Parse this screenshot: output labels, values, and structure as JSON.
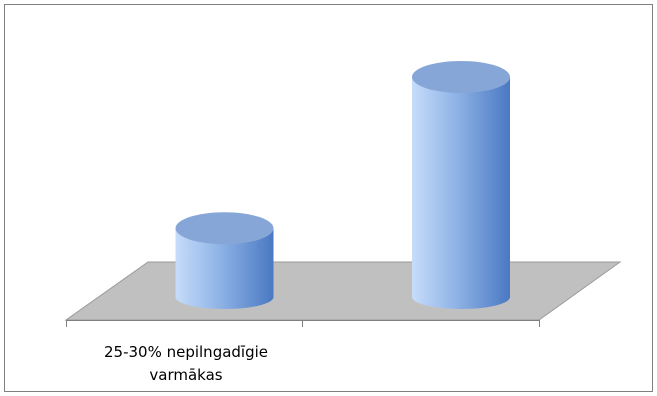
{
  "chart_data": {
    "type": "bar",
    "style": "3d-cylinder",
    "categories": [
      "25-30% nepilngadīgie varmākas",
      ""
    ],
    "series": [
      {
        "values": [
          1,
          3.2
        ]
      }
    ],
    "title": "",
    "xlabel": "",
    "ylabel": "",
    "ylim": [
      0,
      3.5
    ],
    "grid": false,
    "legend": "none",
    "colors": {
      "bar_light": "#c6dcfa",
      "bar_mid": "#8fb3e6",
      "bar_dark": "#4a78c2",
      "bar_top": "#86a6d8",
      "floor": "#c0c0c0",
      "floor_edge": "#9a9a9a",
      "axis": "#808080",
      "border": "#7f7f7f"
    }
  }
}
